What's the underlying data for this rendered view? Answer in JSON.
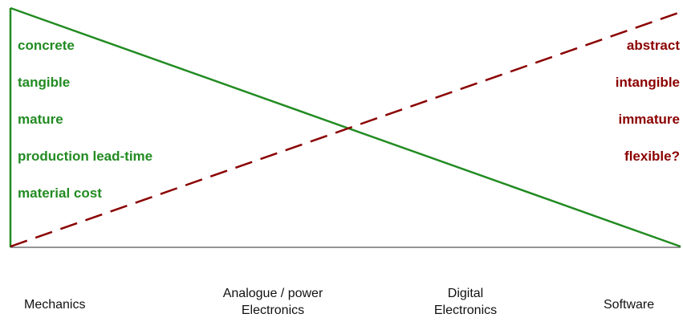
{
  "left_labels": [
    "concrete",
    "tangible",
    "mature",
    "production lead-time",
    "material cost"
  ],
  "right_labels": [
    "abstract",
    "intangible",
    "immature",
    "flexible?"
  ],
  "axis_labels": {
    "mechanics": "Mechanics",
    "analogue_line1": "Analogue / power",
    "analogue_line2": "Electronics",
    "digital_line1": "Digital",
    "digital_line2": "Electronics",
    "software": "Software"
  },
  "colors": {
    "green": "#228b22",
    "dark_red": "#8b0000",
    "baseline": "#555555"
  }
}
